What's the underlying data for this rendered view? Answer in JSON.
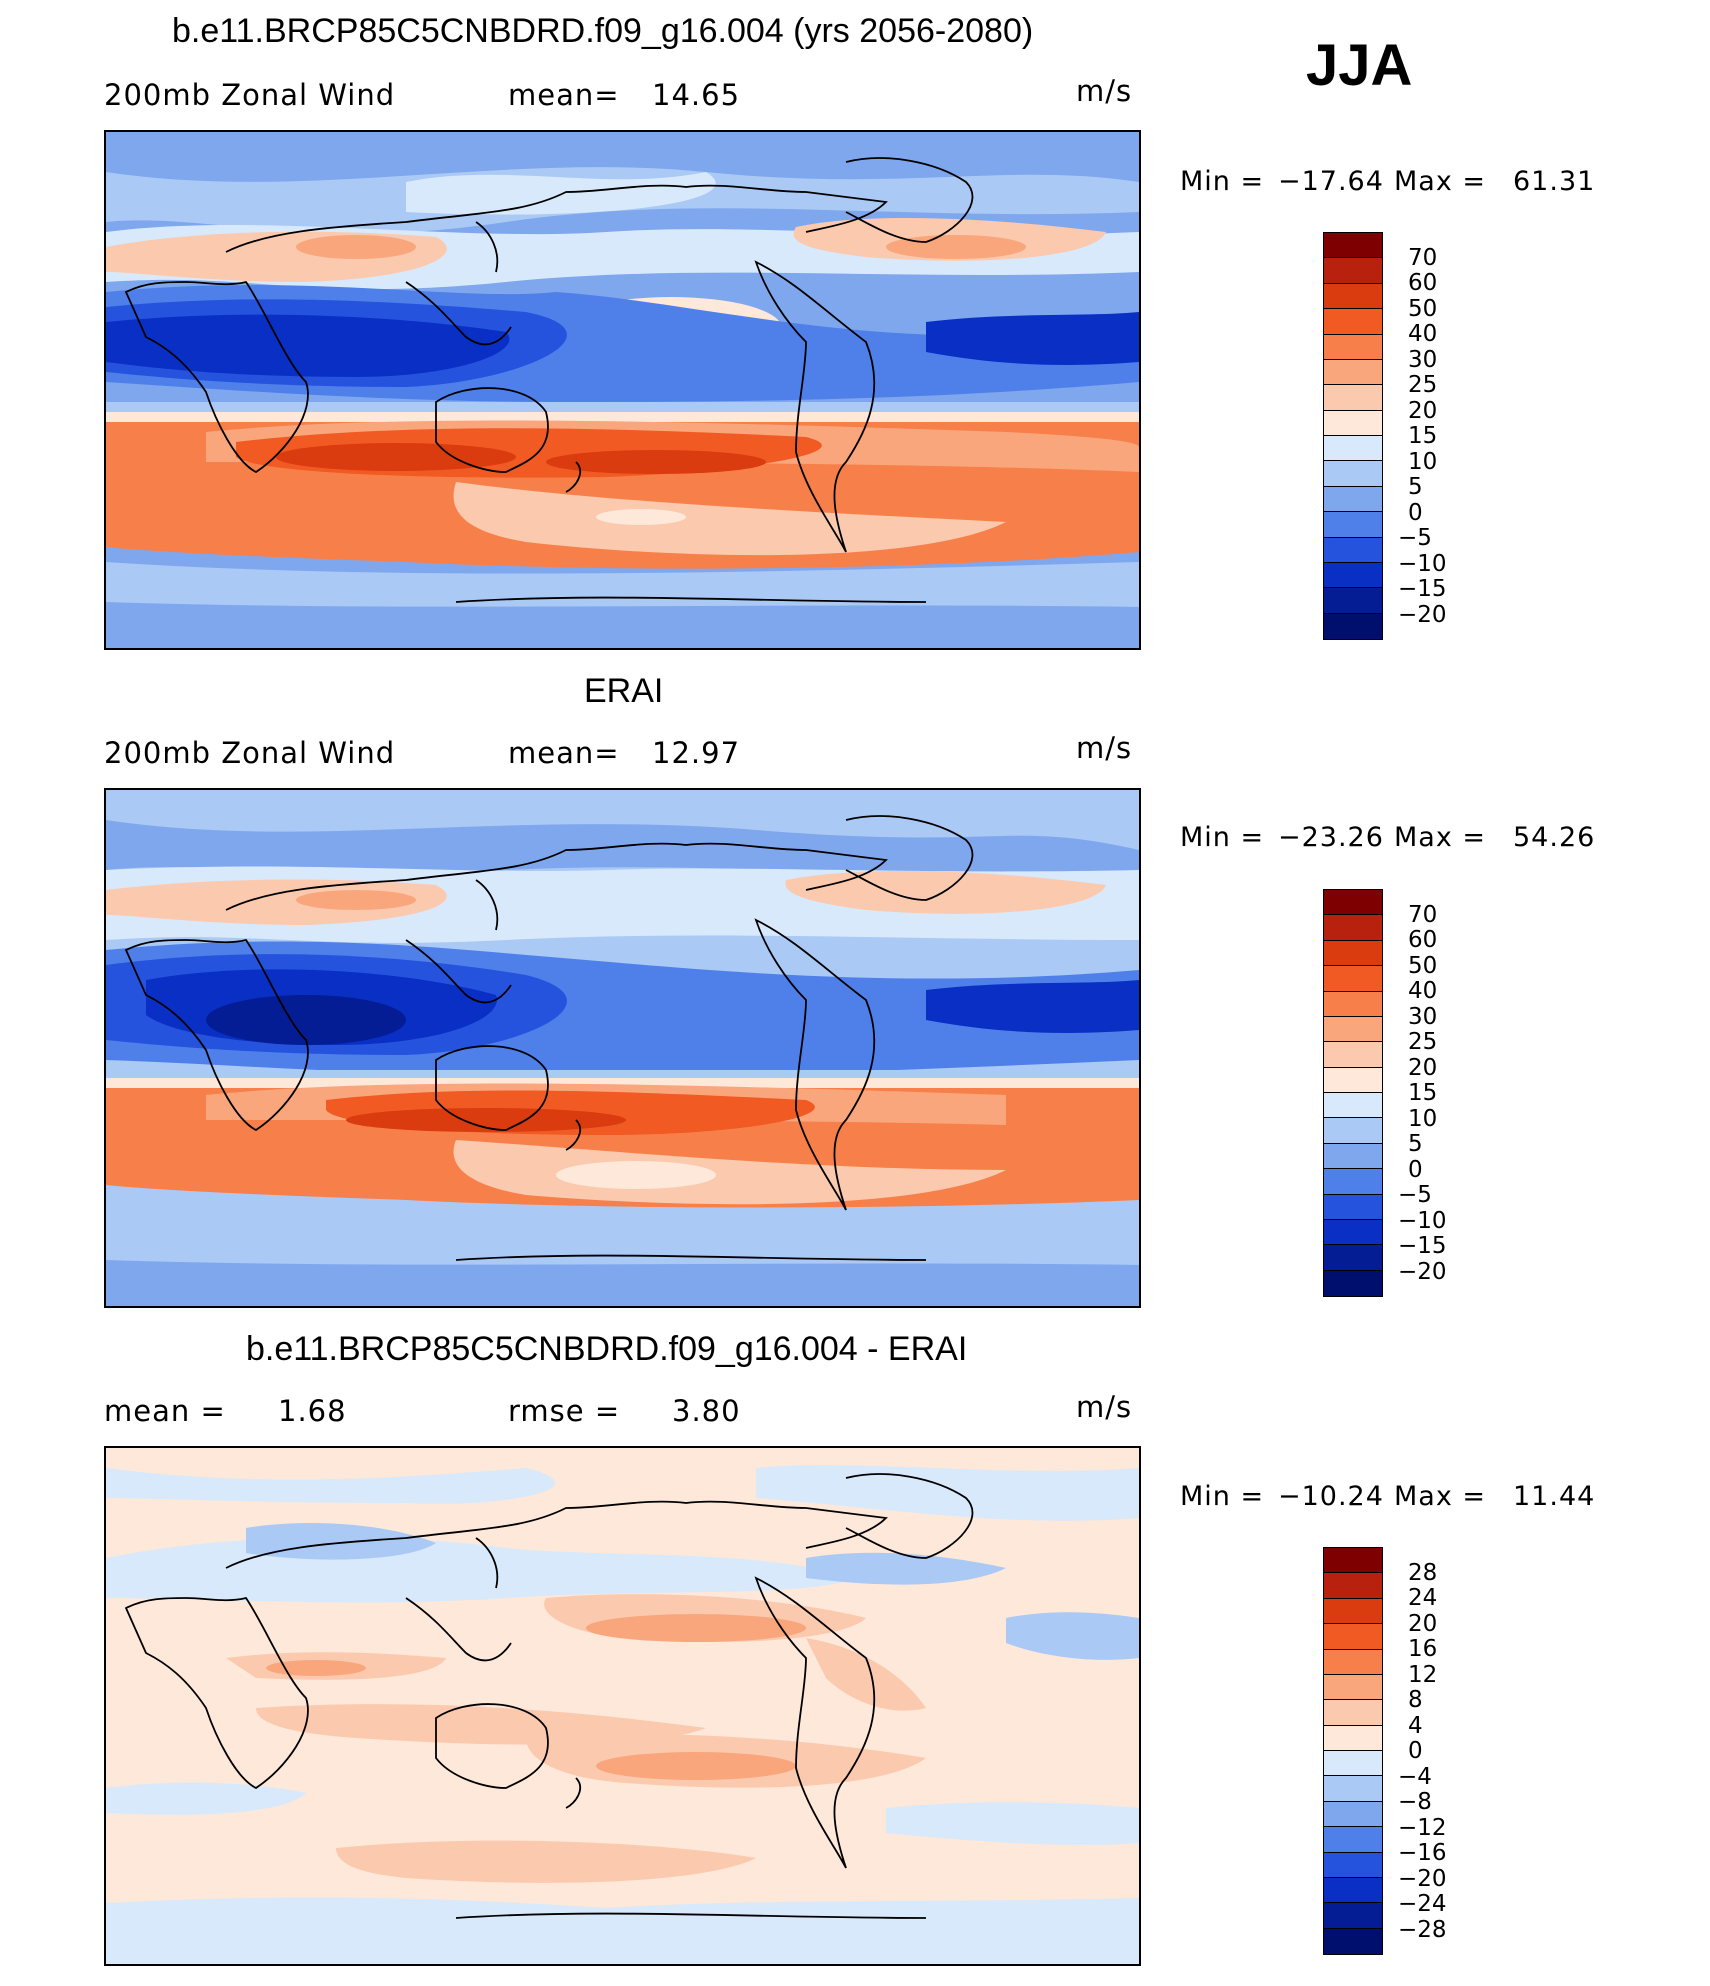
{
  "season": "JJA",
  "units": "m/s",
  "min_label": "Min  =",
  "max_label": "Max  =",
  "panels": [
    {
      "title": "b.e11.BRCP85C5CNBDRD.f09_g16.004 (yrs 2056-2080)",
      "left_label": "200mb  Zonal  Wind",
      "stat1_label": "mean=",
      "stat1_value": "14.65",
      "stat2_label": "",
      "stat2_value": "",
      "units": "m/s",
      "min": "−17.64",
      "max": "61.31",
      "colorbar_labels": [
        "70",
        "60",
        "50",
        "40",
        "30",
        "25",
        "20",
        "15",
        "10",
        "5",
        "0",
        "−5",
        "−10",
        "−15",
        "−20"
      ]
    },
    {
      "title": "ERAI",
      "left_label": "200mb  Zonal  Wind",
      "stat1_label": "mean=",
      "stat1_value": "12.97",
      "stat2_label": "",
      "stat2_value": "",
      "units": "m/s",
      "min": "−23.26",
      "max": "54.26",
      "colorbar_labels": [
        "70",
        "60",
        "50",
        "40",
        "30",
        "25",
        "20",
        "15",
        "10",
        "5",
        "0",
        "−5",
        "−10",
        "−15",
        "−20"
      ]
    },
    {
      "title": "b.e11.BRCP85C5CNBDRD.f09_g16.004 - ERAI",
      "left_label": "",
      "stat1_label": "mean  =",
      "stat1_value": "1.68",
      "stat2_label": "rmse  =",
      "stat2_value": "3.80",
      "units": "m/s",
      "min": "−10.24",
      "max": "11.44",
      "colorbar_labels": [
        "28",
        "24",
        "20",
        "16",
        "12",
        "8",
        "4",
        "0",
        "−4",
        "−8",
        "−12",
        "−16",
        "−20",
        "−24",
        "−28"
      ]
    }
  ],
  "colorbar_colors": [
    "#7f0000",
    "#b8210d",
    "#da3b0f",
    "#f25a23",
    "#f7804a",
    "#f9a67c",
    "#fbc9ae",
    "#fde8d9",
    "#d8e9fb",
    "#aac9f5",
    "#7fa7ee",
    "#4f80ea",
    "#2653de",
    "#0a2fc5",
    "#041c94",
    "#000e6e"
  ],
  "style": {
    "ocean_blue": "#a8c6f2",
    "coast": "#000000"
  }
}
